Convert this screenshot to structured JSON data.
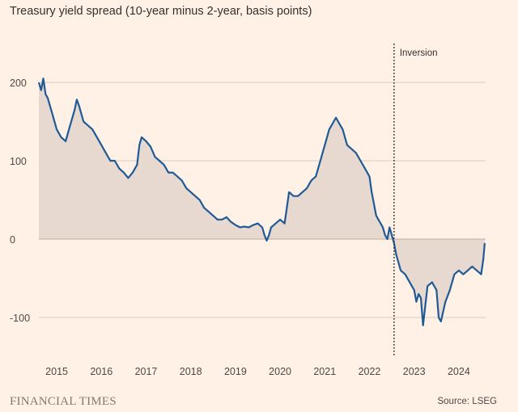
{
  "title": "Treasury yield spread (10-year minus 2-year, basis points)",
  "footer": {
    "brand": "FINANCIAL TIMES",
    "source": "Source: LSEG"
  },
  "colors": {
    "background": "#fff1e5",
    "line": "#1f5a96",
    "fill": "#e7d9cf",
    "grid": "#d8cfc5",
    "zero_line": "#b8aea5",
    "annotation_line": "#33302e"
  },
  "chart_data": {
    "type": "area",
    "title": "Treasury yield spread (10-year minus 2-year, basis points)",
    "xlabel": "",
    "ylabel": "",
    "xlim": [
      2014.6,
      2024.6
    ],
    "ylim": [
      -150,
      200
    ],
    "grid": true,
    "y_ticks": [
      200,
      100,
      0,
      -100
    ],
    "y_tick_labels": [
      "200",
      "100",
      "0",
      "-100"
    ],
    "x_ticks": [
      2015,
      2016,
      2017,
      2018,
      2019,
      2020,
      2021,
      2022,
      2023,
      2024
    ],
    "x_tick_labels": [
      "2015",
      "2016",
      "2017",
      "2018",
      "2019",
      "2020",
      "2021",
      "2022",
      "2023",
      "2024"
    ],
    "annotations": [
      {
        "label": "Inversion",
        "x": 2022.55,
        "style": "dotted-vertical-line"
      }
    ],
    "series": [
      {
        "x": [
          2014.6,
          2014.65,
          2014.7,
          2014.75,
          2014.8,
          2014.9,
          2015.0,
          2015.1,
          2015.2,
          2015.3,
          2015.4,
          2015.45,
          2015.5,
          2015.6,
          2015.7,
          2015.8,
          2015.9,
          2016.0,
          2016.1,
          2016.2,
          2016.3,
          2016.4,
          2016.5,
          2016.6,
          2016.7,
          2016.8,
          2016.85,
          2016.9,
          2017.0,
          2017.1,
          2017.2,
          2017.3,
          2017.4,
          2017.5,
          2017.6,
          2017.7,
          2017.8,
          2017.9,
          2018.0,
          2018.1,
          2018.2,
          2018.3,
          2018.4,
          2018.5,
          2018.6,
          2018.7,
          2018.8,
          2018.9,
          2019.0,
          2019.1,
          2019.2,
          2019.3,
          2019.4,
          2019.5,
          2019.6,
          2019.65,
          2019.7,
          2019.75,
          2019.8,
          2019.9,
          2020.0,
          2020.1,
          2020.15,
          2020.2,
          2020.3,
          2020.4,
          2020.5,
          2020.6,
          2020.7,
          2020.8,
          2020.9,
          2021.0,
          2021.1,
          2021.2,
          2021.25,
          2021.3,
          2021.4,
          2021.5,
          2021.6,
          2021.7,
          2021.8,
          2021.9,
          2022.0,
          2022.05,
          2022.1,
          2022.15,
          2022.2,
          2022.25,
          2022.3,
          2022.35,
          2022.4,
          2022.45,
          2022.5,
          2022.55,
          2022.6,
          2022.7,
          2022.8,
          2022.9,
          2023.0,
          2023.05,
          2023.1,
          2023.15,
          2023.2,
          2023.3,
          2023.4,
          2023.5,
          2023.55,
          2023.6,
          2023.7,
          2023.8,
          2023.9,
          2024.0,
          2024.1,
          2024.2,
          2024.3,
          2024.4,
          2024.5,
          2024.55,
          2024.58
        ],
        "values": [
          200,
          190,
          205,
          185,
          180,
          160,
          140,
          130,
          125,
          145,
          165,
          178,
          170,
          150,
          145,
          140,
          130,
          120,
          110,
          100,
          100,
          90,
          85,
          78,
          85,
          95,
          120,
          130,
          125,
          118,
          105,
          100,
          95,
          85,
          85,
          80,
          75,
          65,
          60,
          55,
          50,
          40,
          35,
          30,
          25,
          25,
          28,
          22,
          18,
          15,
          16,
          15,
          18,
          20,
          15,
          5,
          -2,
          5,
          15,
          20,
          25,
          20,
          40,
          60,
          55,
          55,
          60,
          65,
          75,
          80,
          100,
          120,
          140,
          150,
          155,
          150,
          140,
          120,
          115,
          110,
          100,
          90,
          80,
          60,
          45,
          30,
          25,
          20,
          15,
          5,
          0,
          15,
          5,
          -5,
          -20,
          -40,
          -45,
          -55,
          -65,
          -80,
          -70,
          -75,
          -110,
          -60,
          -55,
          -65,
          -100,
          -105,
          -80,
          -65,
          -45,
          -40,
          -45,
          -40,
          -35,
          -40,
          -45,
          -25,
          -5
        ]
      }
    ]
  }
}
